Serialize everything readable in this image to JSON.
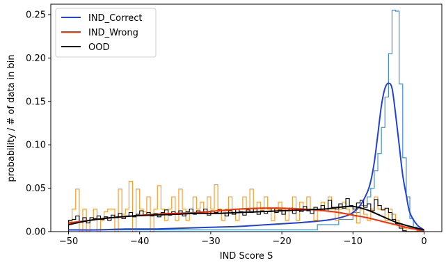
{
  "chart_data": {
    "type": "line",
    "title": "",
    "xlabel": "IND Score S",
    "ylabel": "probability / # of data in bin",
    "xlim": [
      -52.5,
      2.5
    ],
    "ylim": [
      0.0,
      0.262
    ],
    "xticks": [
      -50,
      -40,
      -30,
      -20,
      -10,
      0
    ],
    "xtick_labels": [
      "−50",
      "−40",
      "−30",
      "−20",
      "−10",
      "0"
    ],
    "yticks": [
      0.0,
      0.05,
      0.1,
      0.15,
      0.2,
      0.25
    ],
    "ytick_labels": [
      "0.00",
      "0.05",
      "0.10",
      "0.15",
      "0.20",
      "0.25"
    ],
    "grid": false,
    "legend_position": "top-left",
    "series": [
      {
        "name": "IND_Correct",
        "color": "#1f3fe0",
        "x": [
          -50,
          -46,
          -42,
          -38,
          -34,
          -30,
          -26,
          -22,
          -18,
          -15,
          -13,
          -11,
          -10,
          -9,
          -8,
          -7.5,
          -7,
          -6.5,
          -6,
          -5.5,
          -5,
          -4.5,
          -4,
          -3.5,
          -3,
          -2.5,
          -2,
          -1,
          0
        ],
        "y": [
          0.002,
          0.002,
          0.003,
          0.003,
          0.004,
          0.005,
          0.006,
          0.008,
          0.01,
          0.012,
          0.014,
          0.018,
          0.022,
          0.03,
          0.045,
          0.058,
          0.08,
          0.112,
          0.145,
          0.165,
          0.171,
          0.165,
          0.135,
          0.1,
          0.065,
          0.042,
          0.022,
          0.008,
          0.002
        ]
      },
      {
        "name": "IND_Wrong",
        "color": "#ff2a00",
        "x": [
          -50,
          -47,
          -44,
          -41,
          -38,
          -35,
          -32,
          -29,
          -26,
          -23,
          -20,
          -17,
          -14,
          -12,
          -10,
          -8,
          -6,
          -4,
          -2,
          0
        ],
        "y": [
          0.01,
          0.013,
          0.016,
          0.018,
          0.02,
          0.021,
          0.022,
          0.024,
          0.026,
          0.027,
          0.027,
          0.026,
          0.024,
          0.022,
          0.019,
          0.016,
          0.012,
          0.008,
          0.004,
          0.001
        ]
      },
      {
        "name": "OOD",
        "color": "#000000",
        "x": [
          -50,
          -47,
          -44,
          -41,
          -38,
          -35,
          -32,
          -29,
          -26,
          -23,
          -20,
          -17,
          -14,
          -12,
          -10,
          -8,
          -6,
          -4,
          -2,
          0
        ],
        "y": [
          0.008,
          0.013,
          0.016,
          0.018,
          0.019,
          0.02,
          0.021,
          0.021,
          0.022,
          0.023,
          0.024,
          0.025,
          0.026,
          0.028,
          0.029,
          0.025,
          0.018,
          0.011,
          0.006,
          0.002
        ]
      }
    ],
    "histograms": [
      {
        "name": "IND_Correct",
        "color": "#3b8fd4",
        "bins": [
          [
            -50,
            -15,
            0.002
          ],
          [
            -15,
            -12,
            0.008
          ],
          [
            -12,
            -10,
            0.014
          ],
          [
            -10,
            -9,
            0.022
          ],
          [
            -9,
            -8,
            0.03
          ],
          [
            -8,
            -7.5,
            0.04
          ],
          [
            -7.5,
            -7,
            0.05
          ],
          [
            -7,
            -6.5,
            0.07
          ],
          [
            -6.5,
            -6,
            0.09
          ],
          [
            -6,
            -5.5,
            0.12
          ],
          [
            -5.5,
            -5,
            0.155
          ],
          [
            -5,
            -4.5,
            0.205
          ],
          [
            -4.5,
            -4,
            0.255
          ],
          [
            -4,
            -3.5,
            0.254
          ],
          [
            -3.5,
            -3,
            0.17
          ],
          [
            -3,
            -2.5,
            0.085
          ],
          [
            -2.5,
            -2,
            0.04
          ],
          [
            -2,
            -1.5,
            0.015
          ],
          [
            -1.5,
            -1,
            0.005
          ],
          [
            -1,
            0,
            0.001
          ]
        ]
      },
      {
        "name": "IND_Wrong",
        "color": "#ff9a28",
        "values": [
          0.012,
          0.026,
          0.049,
          0.0,
          0.026,
          0.0,
          0.013,
          0.026,
          0.0,
          0.013,
          0.023,
          0.026,
          0.026,
          0.0,
          0.049,
          0.02,
          0.026,
          0.058,
          0.0,
          0.049,
          0.026,
          0.023,
          0.04,
          0.0,
          0.026,
          0.053,
          0.026,
          0.013,
          0.026,
          0.04,
          0.013,
          0.049,
          0.026,
          0.013,
          0.026,
          0.04,
          0.026,
          0.034,
          0.026,
          0.04,
          0.026,
          0.054,
          0.026,
          0.013,
          0.026,
          0.04,
          0.026,
          0.013,
          0.026,
          0.04,
          0.026,
          0.049,
          0.026,
          0.034,
          0.026,
          0.04,
          0.026,
          0.013,
          0.026,
          0.034,
          0.026,
          0.013,
          0.026,
          0.04,
          0.013,
          0.034,
          0.026,
          0.04,
          0.026,
          0.013,
          0.026,
          0.034,
          0.026,
          0.04,
          0.026,
          0.013,
          0.026,
          0.034,
          0.026,
          0.02,
          0.026,
          0.01,
          0.026,
          0.02,
          0.013,
          0.026,
          0.04,
          0.026,
          0.026,
          0.013,
          0.026,
          0.02,
          0.013,
          0.007,
          0.004,
          0.0,
          0.0,
          0.0,
          0.0,
          0.0
        ]
      },
      {
        "name": "OOD",
        "color": "#111111",
        "values": [
          0.013,
          0.014,
          0.018,
          0.011,
          0.016,
          0.01,
          0.016,
          0.015,
          0.018,
          0.014,
          0.017,
          0.013,
          0.019,
          0.016,
          0.021,
          0.015,
          0.018,
          0.022,
          0.017,
          0.02,
          0.024,
          0.019,
          0.022,
          0.018,
          0.021,
          0.017,
          0.022,
          0.025,
          0.019,
          0.023,
          0.02,
          0.024,
          0.018,
          0.023,
          0.026,
          0.02,
          0.024,
          0.021,
          0.026,
          0.019,
          0.024,
          0.022,
          0.025,
          0.021,
          0.018,
          0.024,
          0.02,
          0.026,
          0.023,
          0.019,
          0.025,
          0.022,
          0.027,
          0.02,
          0.024,
          0.021,
          0.023,
          0.027,
          0.022,
          0.025,
          0.02,
          0.024,
          0.027,
          0.021,
          0.025,
          0.023,
          0.029,
          0.024,
          0.021,
          0.028,
          0.025,
          0.03,
          0.024,
          0.036,
          0.028,
          0.026,
          0.032,
          0.027,
          0.038,
          0.03,
          0.026,
          0.033,
          0.036,
          0.028,
          0.032,
          0.024,
          0.037,
          0.03,
          0.025,
          0.027,
          0.022,
          0.014,
          0.009,
          0.004,
          0.001,
          0.0,
          0.0,
          0.0,
          0.0,
          0.0
        ]
      }
    ]
  }
}
